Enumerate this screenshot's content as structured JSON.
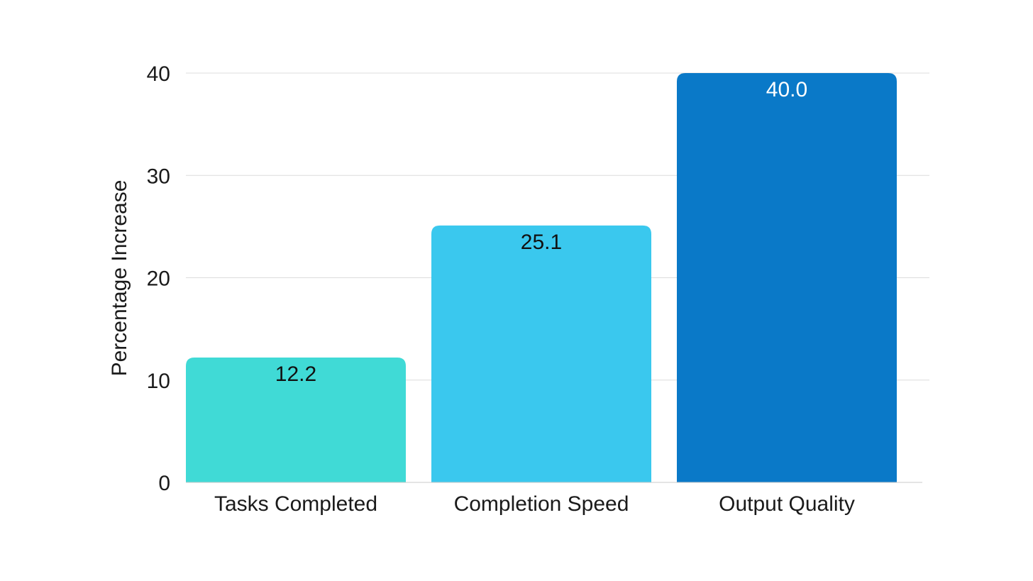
{
  "chart_data": {
    "type": "bar",
    "title": "",
    "xlabel": "",
    "ylabel": "Percentage Increase",
    "categories": [
      "Tasks Completed",
      "Completion Speed",
      "Output Quality"
    ],
    "values": [
      12.2,
      25.1,
      40.0
    ],
    "value_labels": [
      "12.2",
      "25.1",
      "40.0"
    ],
    "ylim": [
      0,
      40
    ],
    "yticks": [
      0,
      10,
      20,
      30,
      40
    ],
    "ytick_labels": [
      "0",
      "10",
      "20",
      "30",
      "40"
    ],
    "grid": true,
    "legend": "none",
    "colors": [
      "#40dad6",
      "#3ac8ee",
      "#0a79c8"
    ],
    "label_colors": [
      "#111111",
      "#111111",
      "#ffffff"
    ]
  }
}
